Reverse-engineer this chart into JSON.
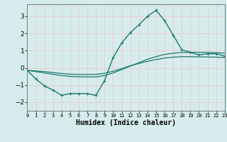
{
  "title": "",
  "xlabel": "Humidex (Indice chaleur)",
  "background_color": "#d6ecec",
  "grid_color": "#f0c8c8",
  "line_color": "#1a7a6e",
  "xlim": [
    0,
    23
  ],
  "ylim": [
    -2.5,
    3.7
  ],
  "yticks": [
    -2,
    -1,
    0,
    1,
    2,
    3
  ],
  "curve1_x": [
    0,
    1,
    2,
    3,
    4,
    5,
    6,
    7,
    8,
    9,
    10,
    11,
    12,
    13,
    14,
    15,
    16,
    17,
    18,
    19,
    20,
    21,
    22,
    23
  ],
  "curve1_y": [
    -0.15,
    -0.65,
    -1.05,
    -1.3,
    -1.6,
    -1.5,
    -1.5,
    -1.5,
    -1.6,
    -0.75,
    0.6,
    1.45,
    2.05,
    2.5,
    3.0,
    3.35,
    2.75,
    1.9,
    1.05,
    0.9,
    0.75,
    0.82,
    0.82,
    0.68
  ],
  "curve2_x": [
    0,
    1,
    2,
    3,
    4,
    5,
    6,
    7,
    8,
    9,
    10,
    11,
    12,
    13,
    14,
    15,
    16,
    17,
    18,
    19,
    20,
    21,
    22,
    23
  ],
  "curve2_y": [
    -0.15,
    -0.22,
    -0.3,
    -0.38,
    -0.45,
    -0.5,
    -0.52,
    -0.53,
    -0.53,
    -0.45,
    -0.3,
    -0.1,
    0.1,
    0.3,
    0.5,
    0.65,
    0.78,
    0.85,
    0.9,
    0.9,
    0.9,
    0.9,
    0.88,
    0.85
  ],
  "curve3_x": [
    0,
    1,
    2,
    3,
    4,
    5,
    6,
    7,
    8,
    9,
    10,
    11,
    12,
    13,
    14,
    15,
    16,
    17,
    18,
    19,
    20,
    21,
    22,
    23
  ],
  "curve3_y": [
    -0.15,
    -0.18,
    -0.22,
    -0.28,
    -0.33,
    -0.37,
    -0.38,
    -0.39,
    -0.38,
    -0.32,
    -0.2,
    -0.05,
    0.12,
    0.25,
    0.38,
    0.48,
    0.57,
    0.62,
    0.65,
    0.65,
    0.64,
    0.63,
    0.62,
    0.6
  ],
  "marker": "+"
}
